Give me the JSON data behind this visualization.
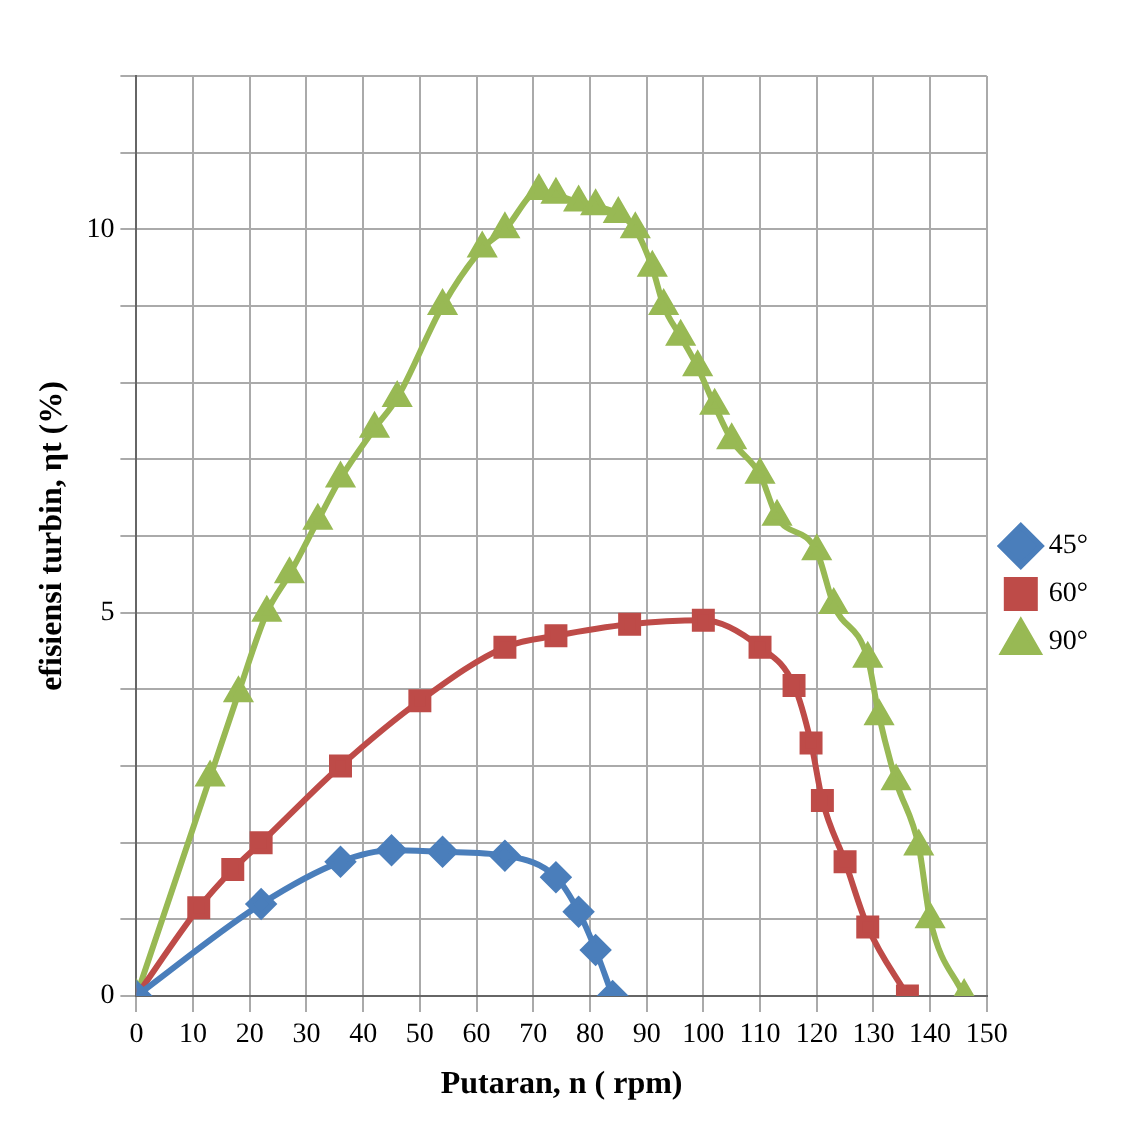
{
  "chart_data": {
    "type": "line",
    "xlabel": "Putaran, n ( rpm)",
    "ylabel": "efisiensi turbin, ηt (%)",
    "xlim": [
      0,
      150
    ],
    "xticks": [
      0,
      10,
      20,
      30,
      40,
      50,
      60,
      70,
      80,
      90,
      100,
      110,
      120,
      130,
      140,
      150
    ],
    "ylim": [
      0,
      12
    ],
    "yticks": [
      0,
      {
        "value": 1,
        "label": null
      },
      {
        "value": 2,
        "label": null
      },
      {
        "value": 3,
        "label": null
      },
      {
        "value": 4,
        "label": null
      },
      5,
      {
        "value": 6,
        "label": null
      },
      {
        "value": 7,
        "label": null
      },
      {
        "value": 8,
        "label": null
      },
      {
        "value": 9,
        "label": null
      },
      10,
      {
        "value": 11,
        "label": null
      },
      {
        "value": 12,
        "label": null
      }
    ],
    "grid": true,
    "legend": "right",
    "series": [
      {
        "name": "45°",
        "color": "#4a7ebb",
        "marker": "diamond",
        "x": [
          0,
          22,
          36,
          45,
          54,
          65,
          74,
          78,
          81,
          84
        ],
        "values": [
          0,
          1.2,
          1.75,
          1.9,
          1.88,
          1.83,
          1.55,
          1.1,
          0.6,
          0
        ]
      },
      {
        "name": "60°",
        "color": "#be4b48",
        "marker": "square",
        "x": [
          0,
          11,
          17,
          22,
          36,
          50,
          65,
          74,
          87,
          100,
          110,
          116,
          119,
          121,
          125,
          129,
          136
        ],
        "values": [
          0,
          1.15,
          1.65,
          2.0,
          3.0,
          3.85,
          4.55,
          4.7,
          4.85,
          4.9,
          4.55,
          4.05,
          3.3,
          2.55,
          1.75,
          0.9,
          0
        ]
      },
      {
        "name": "90°",
        "color": "#98b954",
        "marker": "triangle",
        "x": [
          0,
          13,
          18,
          23,
          27,
          32,
          36,
          42,
          46,
          54,
          61,
          65,
          71,
          74,
          78,
          81,
          85,
          88,
          91,
          93,
          96,
          99,
          102,
          105,
          110,
          113,
          120,
          123,
          129,
          131,
          134,
          138,
          140,
          146
        ],
        "values": [
          0,
          2.85,
          3.95,
          5.0,
          5.5,
          6.2,
          6.75,
          7.4,
          7.8,
          9.0,
          9.75,
          10.0,
          10.5,
          10.45,
          10.35,
          10.3,
          10.2,
          10.0,
          9.5,
          9.0,
          8.6,
          8.2,
          7.7,
          7.25,
          6.8,
          6.25,
          5.8,
          5.1,
          4.4,
          3.65,
          2.8,
          1.95,
          1.0,
          0
        ]
      }
    ]
  }
}
